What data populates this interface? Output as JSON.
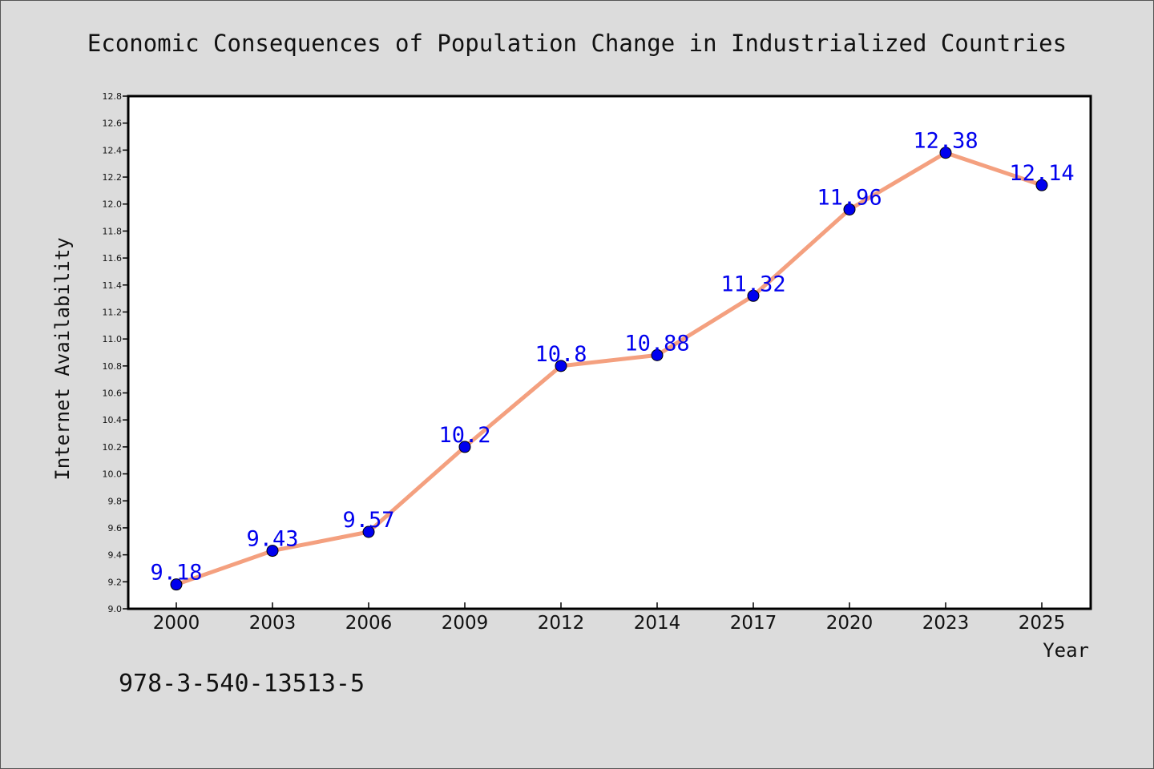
{
  "chart_data": {
    "type": "line",
    "title": "Economic Consequences of Population Change in Industrialized Countries",
    "xlabel": "Year",
    "ylabel": "Internet Availability",
    "categories": [
      "2000",
      "2003",
      "2006",
      "2009",
      "2012",
      "2014",
      "2017",
      "2020",
      "2023",
      "2025"
    ],
    "series": [
      {
        "values": [
          9.18,
          9.43,
          9.57,
          10.2,
          10.8,
          10.88,
          11.32,
          11.96,
          12.38,
          12.14
        ],
        "labels": [
          "9.18",
          "9.43",
          "9.57",
          "10.2",
          "10.8",
          "10.88",
          "11.32",
          "11.96",
          "12.38",
          "12.14"
        ],
        "line_color": "#f4a07f",
        "marker_color": "#0000ee",
        "label_color": "#0000ee"
      }
    ],
    "ylim": [
      9.0,
      12.8
    ],
    "yticks": [
      "9.0",
      "9.2",
      "9.4",
      "9.6",
      "9.8",
      "10.0",
      "10.2",
      "10.4",
      "10.6",
      "10.8",
      "11.0",
      "11.2",
      "11.4",
      "11.6",
      "11.8",
      "12.0",
      "12.2",
      "12.4",
      "12.6",
      "12.8"
    ],
    "grid": false,
    "legend": "none"
  },
  "footer": {
    "isbn": "978-3-540-13513-5"
  }
}
